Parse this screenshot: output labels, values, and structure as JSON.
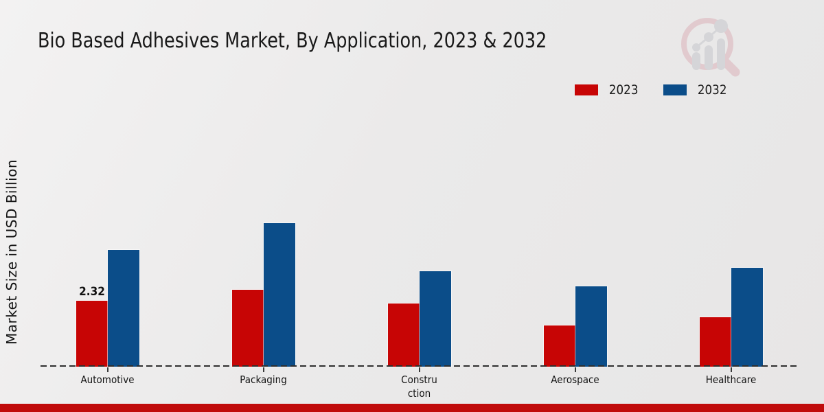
{
  "title": "Bio Based Adhesives Market, By Application, 2023 & 2032",
  "ylabel": "Market Size in USD Billion",
  "legend": [
    {
      "label": "2023",
      "color": "#c70505"
    },
    {
      "label": "2032",
      "color": "#0b4d89"
    }
  ],
  "branding": {
    "watermark_icon": "magnifier-growth-chart-logo",
    "accent_bar_color": "#c00b0b"
  },
  "chart_data": {
    "type": "bar",
    "title": "Bio Based Adhesives Market, By Application, 2023 & 2032",
    "xlabel": "",
    "ylabel": "Market Size in USD Billion",
    "categories": [
      "Automotive",
      "Packaging",
      "Constru\nction",
      "Aerospace",
      "Healthcare"
    ],
    "series": [
      {
        "name": "2023",
        "color": "#c70505",
        "values": [
          2.32,
          2.7,
          2.23,
          1.46,
          1.74
        ]
      },
      {
        "name": "2032",
        "color": "#0b4d89",
        "values": [
          4.11,
          5.05,
          3.35,
          2.82,
          3.48
        ]
      }
    ],
    "annotations": [
      {
        "category_index": 0,
        "series_index": 0,
        "text": "2.32"
      }
    ],
    "ylim": [
      0,
      5.8
    ],
    "grid": false,
    "y_axis_ticks_visible": false,
    "baseline_style": "dashed",
    "legend_position": "top-right"
  }
}
